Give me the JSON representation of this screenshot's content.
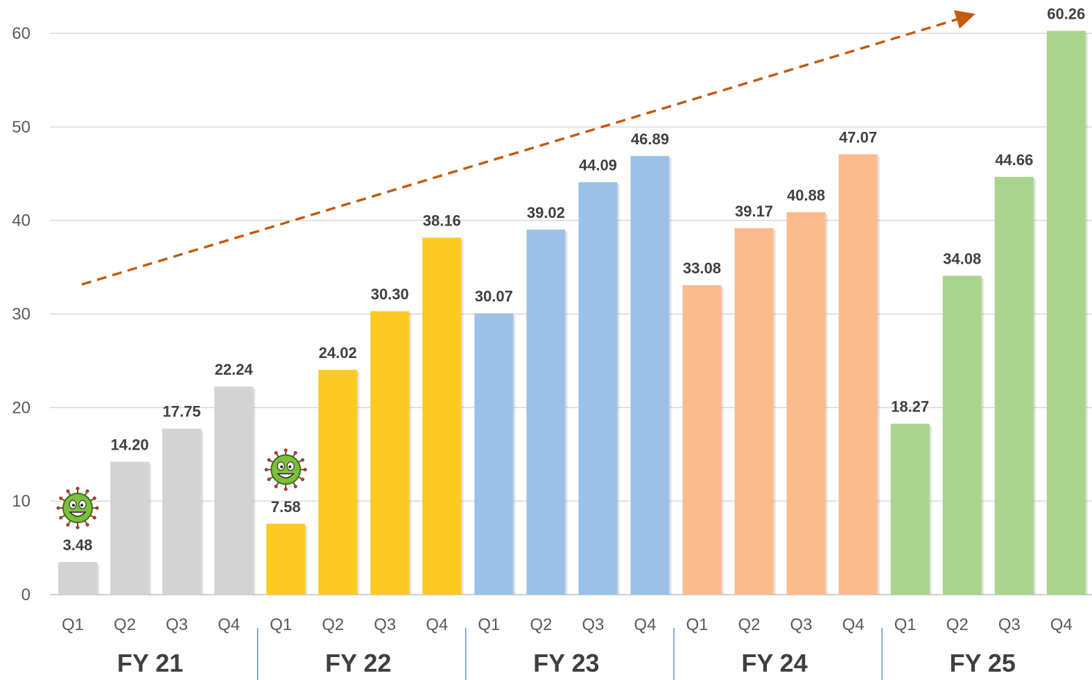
{
  "chart_data": {
    "type": "bar",
    "ylim": [
      0,
      60
    ],
    "yticks": [
      0,
      10,
      20,
      30,
      40,
      50,
      60
    ],
    "grid": true,
    "legend": "none",
    "trend_arrow": true,
    "groups": [
      {
        "label": "FY 21",
        "color": "#d3d3d3",
        "categories": [
          "Q1",
          "Q2",
          "Q3",
          "Q4"
        ],
        "values": [
          3.48,
          14.2,
          17.75,
          22.24
        ],
        "labels": [
          "3.48",
          "14.20",
          "17.75",
          "22.24"
        ],
        "virus_icon_on": "Q1"
      },
      {
        "label": "FY 22",
        "color": "#fdc923",
        "categories": [
          "Q1",
          "Q2",
          "Q3",
          "Q4"
        ],
        "values": [
          7.58,
          24.02,
          30.3,
          38.16
        ],
        "labels": [
          "7.58",
          "24.02",
          "30.30",
          "38.16"
        ],
        "virus_icon_on": "Q1"
      },
      {
        "label": "FY 23",
        "color": "#9bc2e6",
        "categories": [
          "Q1",
          "Q2",
          "Q3",
          "Q4"
        ],
        "values": [
          30.07,
          39.02,
          44.09,
          46.89
        ],
        "labels": [
          "30.07",
          "39.02",
          "44.09",
          "46.89"
        ]
      },
      {
        "label": "FY 24",
        "color": "#fbbb8c",
        "categories": [
          "Q1",
          "Q2",
          "Q3",
          "Q4"
        ],
        "values": [
          33.08,
          39.17,
          40.88,
          47.07
        ],
        "labels": [
          "33.08",
          "39.17",
          "40.88",
          "47.07"
        ]
      },
      {
        "label": "FY 25",
        "color": "#a8d48e",
        "categories": [
          "Q1",
          "Q2",
          "Q3",
          "Q4"
        ],
        "values": [
          18.27,
          34.08,
          44.66,
          60.26
        ],
        "labels": [
          "18.27",
          "34.08",
          "44.66",
          "60.26"
        ]
      }
    ],
    "colors": {
      "grid": "#d9d9d9",
      "axis": "#bfbfbf",
      "group_divider": "#4472c4",
      "trend": "#c55a11",
      "virus": "#7cbf3a"
    }
  }
}
